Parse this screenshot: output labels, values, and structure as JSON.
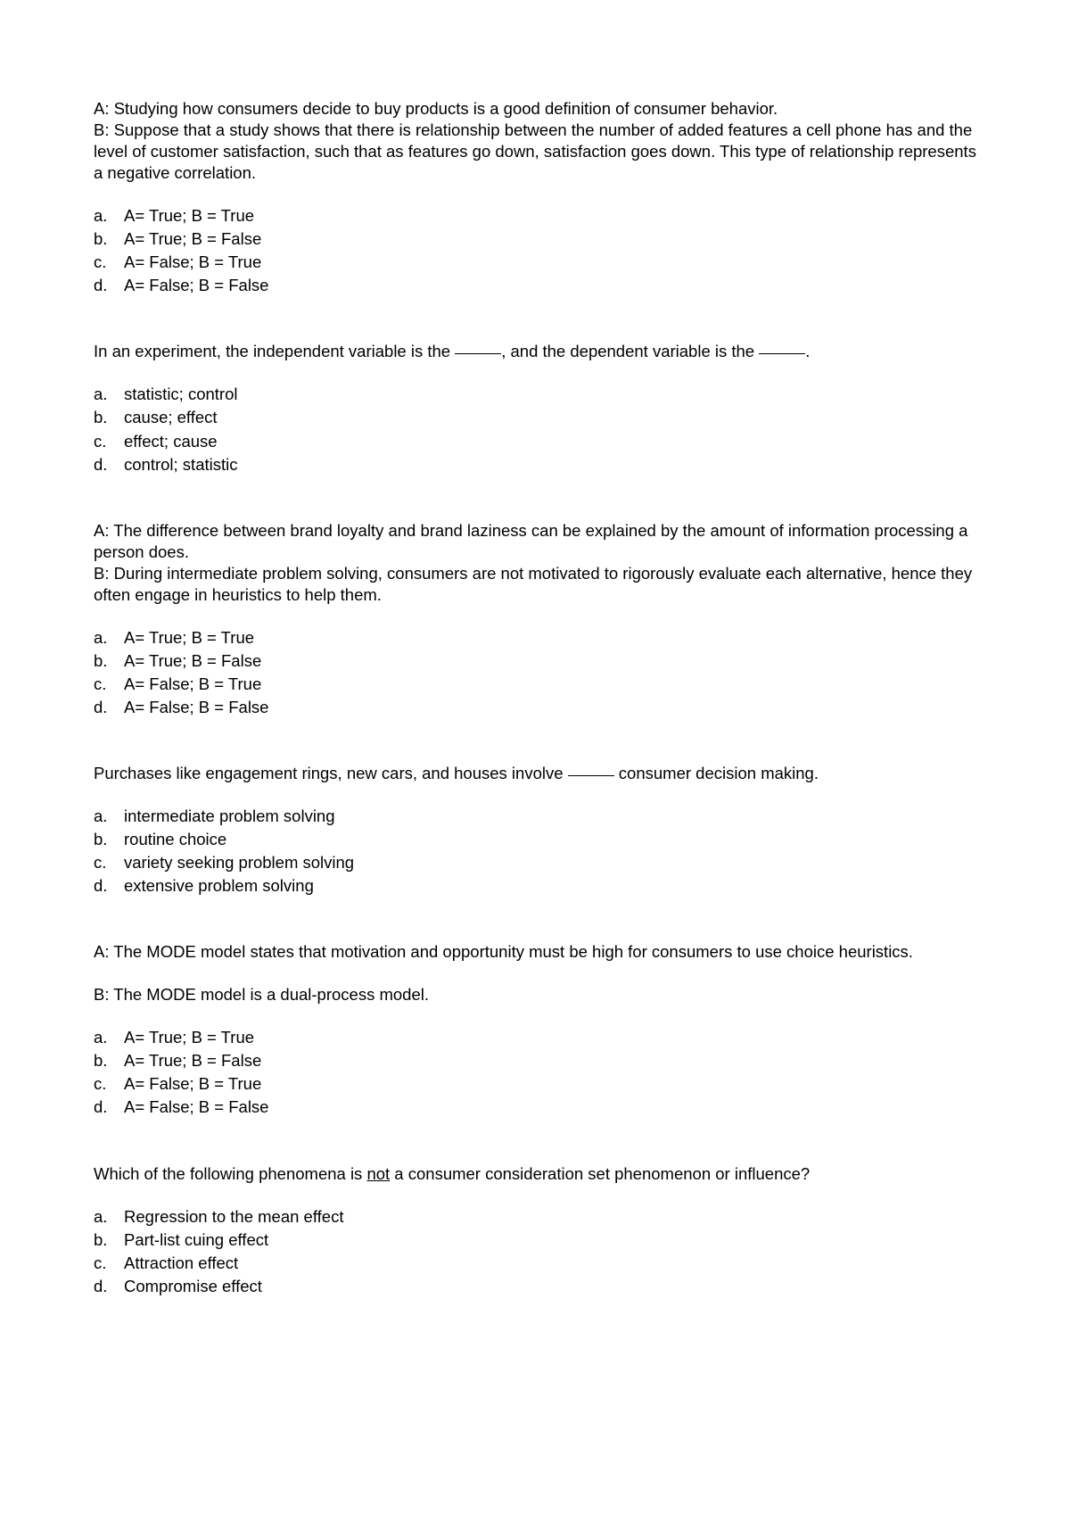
{
  "page": {
    "background_color": "#ffffff",
    "text_color": "#000000",
    "font_family": "Arial",
    "font_size_pt": 14
  },
  "questions": [
    {
      "stem_lines": [
        "A: Studying how consumers decide to buy products is a good definition of consumer behavior.",
        "B: Suppose that a study shows that there is relationship between the number of added features a cell phone has and the level of customer satisfaction, such that as features go down, satisfaction goes down.  This type of relationship represents a negative correlation."
      ],
      "options": [
        {
          "letter": "a.",
          "text": "A= True; B = True"
        },
        {
          "letter": "b.",
          "text": "A= True; B = False"
        },
        {
          "letter": "c.",
          "text": "A= False; B = True"
        },
        {
          "letter": "d.",
          "text": "A= False; B = False"
        }
      ]
    },
    {
      "stem_pre": "In an experiment, the independent variable is the ",
      "stem_mid": ", and the dependent variable is the ",
      "stem_post": ".",
      "has_blanks": true,
      "options": [
        {
          "letter": "a.",
          "text": "statistic; control"
        },
        {
          "letter": "b.",
          "text": "cause; effect"
        },
        {
          "letter": "c.",
          "text": "effect; cause"
        },
        {
          "letter": "d.",
          "text": "control; statistic"
        }
      ]
    },
    {
      "stem_lines": [
        "A: The difference between brand loyalty and brand laziness can be explained by the amount of information processing a person does.",
        "B: During intermediate problem solving, consumers are not motivated to rigorously evaluate each alternative, hence they often engage in heuristics to help them."
      ],
      "options": [
        {
          "letter": "a.",
          "text": "A= True; B = True"
        },
        {
          "letter": "b.",
          "text": "A= True; B = False"
        },
        {
          "letter": "c.",
          "text": "A= False; B = True"
        },
        {
          "letter": "d.",
          "text": "A= False; B = False"
        }
      ]
    },
    {
      "stem_pre": "Purchases like engagement rings, new cars, and houses involve ",
      "stem_post": " consumer decision making.",
      "has_single_blank": true,
      "options": [
        {
          "letter": "a.",
          "text": "intermediate problem solving"
        },
        {
          "letter": "b.",
          "text": "routine choice"
        },
        {
          "letter": "c.",
          "text": "variety seeking problem solving"
        },
        {
          "letter": "d.",
          "text": "extensive problem solving"
        }
      ]
    },
    {
      "stem_lines": [
        "A: The MODE model states that motivation and opportunity must be high for consumers to use choice heuristics.",
        "",
        "B: The MODE model is a dual-process model."
      ],
      "spaced": true,
      "options": [
        {
          "letter": "a.",
          "text": "A= True; B = True"
        },
        {
          "letter": "b.",
          "text": "A= True; B = False"
        },
        {
          "letter": "c.",
          "text": "A= False; B = True"
        },
        {
          "letter": "d.",
          "text": "A= False; B = False"
        }
      ]
    },
    {
      "stem_pre": "Which of the following phenomena is ",
      "stem_underline": "not",
      "stem_post": " a consumer consideration set phenomenon or influence?",
      "has_underline": true,
      "options": [
        {
          "letter": "a.",
          "text": "Regression to the mean effect"
        },
        {
          "letter": "b.",
          "text": "Part-list cuing effect"
        },
        {
          "letter": "c.",
          "text": "Attraction effect"
        },
        {
          "letter": "d.",
          "text": "Compromise effect"
        }
      ]
    }
  ]
}
